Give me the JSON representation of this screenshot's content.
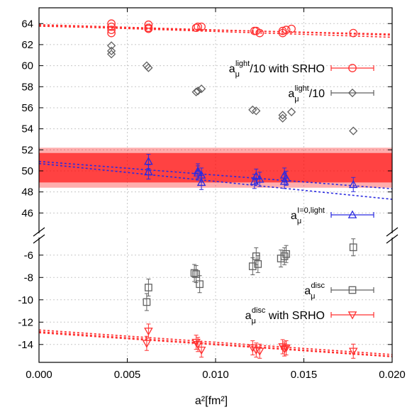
{
  "chart_data": {
    "type": "scatter",
    "xlabel": "a²[fm²]",
    "x_ticks": [
      "0.000",
      "0.005",
      "0.010",
      "0.015",
      "0.020"
    ],
    "xlim": [
      0,
      0.02
    ],
    "top_panel": {
      "ylim": [
        44,
        65.5
      ],
      "y_ticks": [
        "46",
        "48",
        "50",
        "52",
        "54",
        "56",
        "58",
        "60",
        "62",
        "64"
      ]
    },
    "bottom_panel": {
      "ylim": [
        -15.6,
        -4.3
      ],
      "y_ticks": [
        "-14",
        "-12",
        "-10",
        "-8",
        "-6"
      ]
    },
    "band": {
      "color": "#ff0000",
      "outer": [
        48.4,
        52.2
      ],
      "inner": [
        48.9,
        51.7
      ]
    },
    "series": [
      {
        "key": "srho",
        "panel": "top",
        "marker": "circle",
        "color": "#ff3030",
        "legend": {
          "base": "a",
          "sup": "light",
          "sub": "μ",
          "suffix": "/10 with SRHO"
        },
        "points": [
          [
            0.0041,
            64.0
          ],
          [
            0.0041,
            63.7
          ],
          [
            0.0041,
            63.4
          ],
          [
            0.0041,
            63.1
          ],
          [
            0.0062,
            63.9
          ],
          [
            0.0062,
            63.6
          ],
          [
            0.0062,
            63.5
          ],
          [
            0.0089,
            63.6
          ],
          [
            0.009,
            63.7
          ],
          [
            0.0092,
            63.7
          ],
          [
            0.0122,
            63.3
          ],
          [
            0.0123,
            63.3
          ],
          [
            0.0125,
            63.1
          ],
          [
            0.0138,
            63.1
          ],
          [
            0.0138,
            63.3
          ],
          [
            0.014,
            63.4
          ],
          [
            0.0143,
            63.5
          ],
          [
            0.0178,
            63.1
          ]
        ],
        "fits": [
          [
            63.9,
            62.9
          ],
          [
            63.8,
            62.7
          ],
          [
            63.75,
            63.0
          ]
        ]
      },
      {
        "key": "light",
        "panel": "top",
        "marker": "diamond",
        "color": "#606060",
        "legend": {
          "base": "a",
          "sup": "light",
          "sub": "μ",
          "suffix": "/10"
        },
        "points": [
          [
            0.0041,
            61.1
          ],
          [
            0.0041,
            61.4
          ],
          [
            0.0041,
            61.9
          ],
          [
            0.0061,
            60.0
          ],
          [
            0.0062,
            59.8
          ],
          [
            0.0089,
            57.5
          ],
          [
            0.009,
            57.6
          ],
          [
            0.0092,
            57.8
          ],
          [
            0.0121,
            55.8
          ],
          [
            0.0123,
            55.7
          ],
          [
            0.0138,
            55.0
          ],
          [
            0.0138,
            55.3
          ],
          [
            0.0143,
            55.6
          ],
          [
            0.0178,
            53.8
          ]
        ],
        "fits": []
      },
      {
        "key": "i0",
        "panel": "top",
        "marker": "triangle-up",
        "color": "#2a2ae0",
        "legend": {
          "base": "a",
          "sup": "I=0,light",
          "sub": "μ",
          "suffix": ""
        },
        "points": [
          [
            0.0062,
            49.9
          ],
          [
            0.0062,
            50.9
          ],
          [
            0.009,
            50.0
          ],
          [
            0.009,
            49.8
          ],
          [
            0.0092,
            48.9
          ],
          [
            0.0092,
            49.6
          ],
          [
            0.0122,
            49.0
          ],
          [
            0.0123,
            49.5
          ],
          [
            0.0125,
            49.2
          ],
          [
            0.0139,
            49.0
          ],
          [
            0.0139,
            49.6
          ],
          [
            0.014,
            49.3
          ],
          [
            0.0178,
            48.7
          ]
        ],
        "fits": [
          [
            50.9,
            48.3
          ],
          [
            50.7,
            47.3
          ]
        ]
      },
      {
        "key": "disc",
        "panel": "bottom",
        "marker": "square",
        "color": "#606060",
        "legend": {
          "base": "a",
          "sup": "disc",
          "sub": "μ",
          "suffix": ""
        },
        "points": [
          [
            0.0061,
            -10.2
          ],
          [
            0.0062,
            -8.9
          ],
          [
            0.0088,
            -7.6
          ],
          [
            0.0089,
            -7.7
          ],
          [
            0.0091,
            -8.6
          ],
          [
            0.0121,
            -7.0
          ],
          [
            0.0123,
            -6.1
          ],
          [
            0.0124,
            -6.8
          ],
          [
            0.0137,
            -6.3
          ],
          [
            0.0139,
            -6.1
          ],
          [
            0.014,
            -5.9
          ],
          [
            0.0178,
            -5.3
          ]
        ],
        "fits": []
      },
      {
        "key": "disc_srho",
        "panel": "bottom",
        "marker": "triangle-down",
        "color": "#ff3030",
        "legend": {
          "base": "a",
          "sup": "disc",
          "sub": "μ",
          "suffix": " with SRHO"
        },
        "points": [
          [
            0.0061,
            -13.9
          ],
          [
            0.0062,
            -12.8
          ],
          [
            0.0089,
            -13.8
          ],
          [
            0.009,
            -14.0
          ],
          [
            0.0092,
            -14.5
          ],
          [
            0.0121,
            -14.3
          ],
          [
            0.0123,
            -14.5
          ],
          [
            0.0125,
            -14.6
          ],
          [
            0.0138,
            -14.2
          ],
          [
            0.0139,
            -14.4
          ],
          [
            0.014,
            -14.3
          ],
          [
            0.0178,
            -14.6
          ]
        ],
        "fits": [
          [
            -12.7,
            -14.9
          ],
          [
            -12.85,
            -15.05
          ],
          [
            -12.95,
            -15.1
          ]
        ]
      }
    ]
  }
}
